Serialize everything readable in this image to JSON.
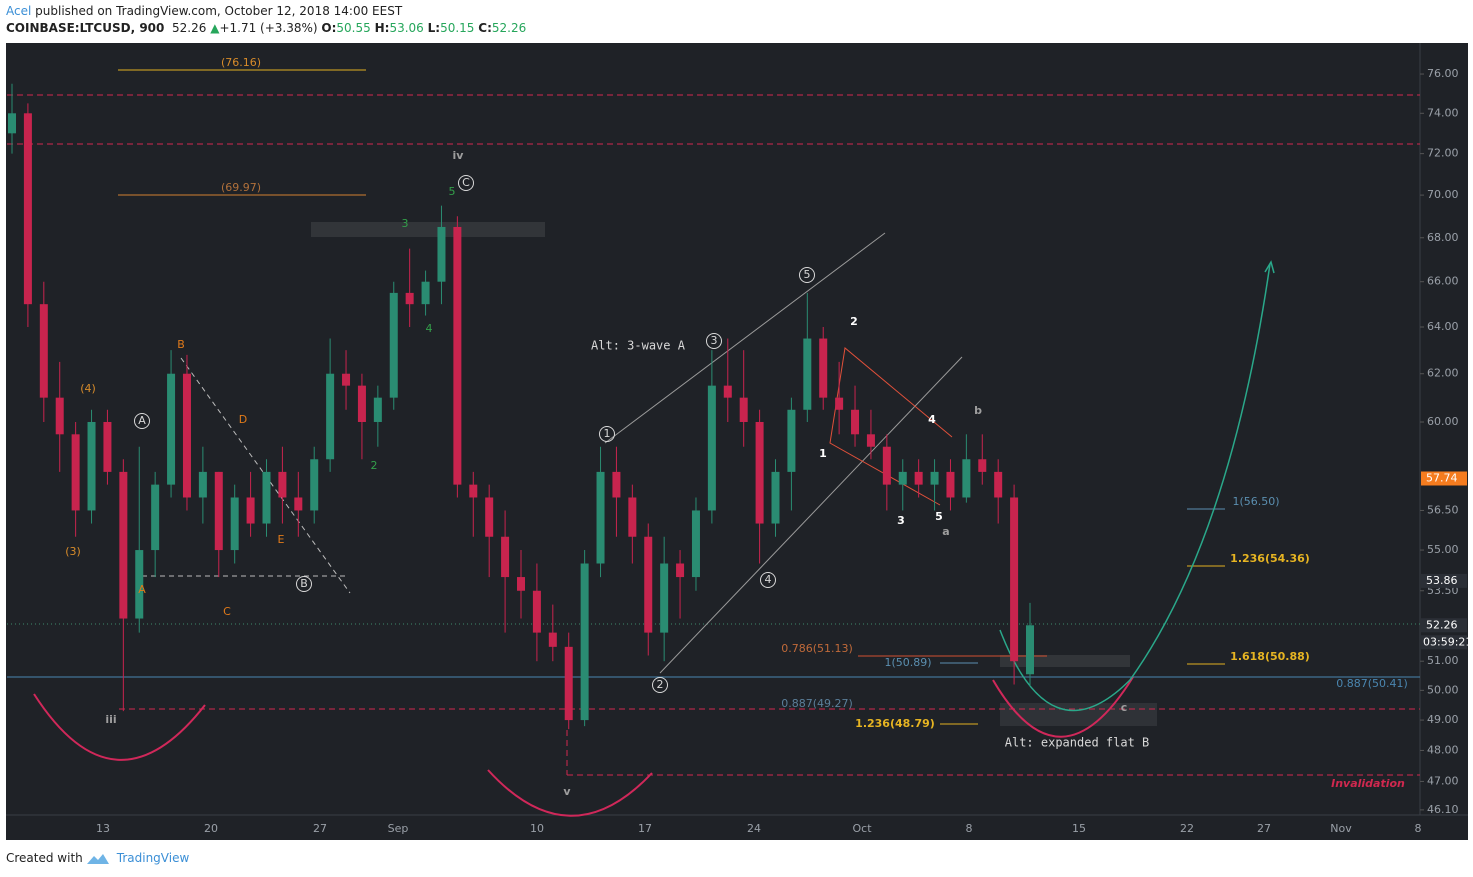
{
  "header": {
    "author": "Acel",
    "published": "published on TradingView.com, October 12, 2018 14:00 EEST",
    "symbol": "COINBASE:LTCUSD, 900",
    "last": "52.26",
    "change": "+1.71 (+3.38%)",
    "o_label": "O:",
    "o": "50.55",
    "h_label": "H:",
    "h": "53.06",
    "l_label": "L:",
    "l": "50.15",
    "c_label": "C:",
    "c": "52.26"
  },
  "footer": {
    "text": "Created with",
    "brand": "TradingView"
  },
  "chart_data": {
    "type": "candlestick",
    "log_scale": true,
    "up_color": "#2a8c72",
    "down_color": "#c8244e",
    "ylim": [
      45.94,
      77.62
    ],
    "yticks": [
      {
        "value": 46.1,
        "label": "46.10"
      },
      {
        "value": 47,
        "label": "47.00"
      },
      {
        "value": 48,
        "label": "48.00"
      },
      {
        "value": 49,
        "label": "49.00"
      },
      {
        "value": 50,
        "label": "50.00"
      },
      {
        "value": 51,
        "label": "51.00"
      },
      {
        "value": 53.5,
        "label": "53.50"
      },
      {
        "value": 55,
        "label": "55.00"
      },
      {
        "value": 56.5,
        "label": "56.50"
      },
      {
        "value": 60,
        "label": "60.00"
      },
      {
        "value": 62,
        "label": "62.00"
      },
      {
        "value": 64,
        "label": "64.00"
      },
      {
        "value": 66,
        "label": "66.00"
      },
      {
        "value": 68,
        "label": "68.00"
      },
      {
        "value": 70,
        "label": "70.00"
      },
      {
        "value": 72,
        "label": "72.00"
      },
      {
        "value": 74,
        "label": "74.00"
      },
      {
        "value": 76,
        "label": "76.00"
      }
    ],
    "xticks": [
      "13",
      "20",
      "27",
      "Sep",
      "10",
      "17",
      "24",
      "Oct",
      "8",
      "15",
      "22",
      "27",
      "Nov",
      "8"
    ],
    "price_markers": [
      {
        "value": 57.74,
        "color": "#f57c1f"
      },
      {
        "value": 53.86,
        "color": "#2b2f36"
      },
      {
        "value": 52.26,
        "color": "#2b2f36"
      }
    ],
    "countdown": "03:59:21",
    "open": [
      73,
      74,
      65,
      61,
      59.5,
      56.5,
      60,
      58,
      52.5,
      55,
      57.5,
      62,
      57,
      58,
      55,
      57,
      56,
      58,
      57,
      56.5,
      58.5,
      62,
      61.5,
      60,
      61,
      65.5,
      65,
      66,
      68.5,
      57.5,
      57,
      55.5,
      54,
      53.5,
      52,
      51.5,
      49,
      54.5,
      58,
      57,
      55.5,
      52,
      54.5,
      54,
      56.5,
      61.5,
      61,
      60,
      56,
      58,
      60.5,
      63.5,
      61,
      60.5,
      59.5,
      59,
      57.5,
      58,
      57.5,
      58,
      57,
      58.5,
      58,
      57,
      50.55
    ],
    "high": [
      75.5,
      74.5,
      66,
      62.5,
      60,
      60.5,
      60.5,
      58.5,
      59,
      58,
      63,
      62.8,
      59,
      58,
      57.5,
      58,
      58.5,
      59,
      58,
      59,
      63.5,
      63,
      62,
      61.5,
      66,
      67.5,
      66.5,
      69.5,
      69,
      58,
      57.5,
      56.5,
      55,
      54.5,
      53,
      52,
      55,
      59,
      59,
      57.5,
      56,
      55.5,
      55,
      57,
      63,
      63.5,
      63,
      60.5,
      58.5,
      61,
      65.5,
      64,
      62.5,
      61.5,
      60.5,
      59.5,
      58.5,
      58.5,
      58.5,
      58.5,
      59.5,
      59.5,
      58.5,
      57.5,
      53.06
    ],
    "low": [
      72,
      64,
      60,
      58,
      55.5,
      56,
      57.5,
      49.3,
      52,
      54,
      57,
      56.5,
      56,
      54,
      54.5,
      55.5,
      55.5,
      56,
      55.5,
      56,
      58,
      60.5,
      58.5,
      59,
      60.5,
      64,
      64.5,
      65,
      57,
      55.5,
      54,
      52,
      52.5,
      51,
      51,
      48.7,
      48.8,
      54,
      55.5,
      54.5,
      51.2,
      51,
      52.5,
      53.5,
      56,
      60,
      59,
      54.5,
      55.5,
      56.5,
      60,
      60.5,
      59.5,
      59,
      58.5,
      56.5,
      56.5,
      57,
      56.5,
      56.5,
      56.8,
      57.5,
      56,
      50.2,
      50.15
    ],
    "close": [
      74,
      65,
      61,
      59.5,
      56.5,
      60,
      58,
      52.5,
      55,
      57.5,
      62,
      57,
      58,
      55,
      57,
      56,
      58,
      57,
      56.5,
      58.5,
      62,
      61.5,
      60,
      61,
      65.5,
      65,
      66,
      68.5,
      57.5,
      57,
      55.5,
      54,
      53.5,
      52,
      51.5,
      49,
      54.5,
      58,
      57,
      55.5,
      52,
      54.5,
      54,
      56.5,
      61.5,
      61,
      60,
      56,
      58,
      60.5,
      63.5,
      61,
      60.5,
      59.5,
      59,
      57.5,
      58,
      57.5,
      58,
      57,
      58.5,
      58,
      57,
      51,
      52.26
    ],
    "annotations": [
      {
        "text": "(76.16)",
        "color": "#d88c2a"
      },
      {
        "text": "(69.97)",
        "color": "#b0703a"
      },
      {
        "text": "iv",
        "color": "#9e9e9e"
      },
      {
        "text": "C",
        "color": "#d8d8d8"
      },
      {
        "text": "5",
        "color": "#33a04a"
      },
      {
        "text": "3",
        "color": "#33a04a"
      },
      {
        "text": "4",
        "color": "#33a04a"
      },
      {
        "text": "2",
        "color": "#33a04a"
      },
      {
        "text": "(4)",
        "color": "#d88c2a"
      },
      {
        "text": "(3)",
        "color": "#d88c2a"
      },
      {
        "text": "A",
        "color": "#d8d8d8"
      },
      {
        "text": "B",
        "color": "#e07a1a"
      },
      {
        "text": "D",
        "color": "#e07a1a"
      },
      {
        "text": "E",
        "color": "#e07a1a"
      },
      {
        "text": "A",
        "color": "#e07a1a"
      },
      {
        "text": "C",
        "color": "#e07a1a"
      },
      {
        "text": "B",
        "color": "#d8d8d8"
      },
      {
        "text": "iii",
        "color": "#9e9e9e"
      },
      {
        "text": "v",
        "color": "#9e9e9e"
      },
      {
        "text": "Alt: 3-wave A",
        "color": "#d8d8d8"
      },
      {
        "text": "3",
        "color": "#d8d8d8"
      },
      {
        "text": "1",
        "color": "#d8d8d8"
      },
      {
        "text": "5",
        "color": "#d8d8d8"
      },
      {
        "text": "4",
        "color": "#d8d8d8"
      },
      {
        "text": "2",
        "color": "#d8d8d8"
      },
      {
        "text": "2",
        "color": "#ffffff"
      },
      {
        "text": "1",
        "color": "#ffffff"
      },
      {
        "text": "4",
        "color": "#ffffff"
      },
      {
        "text": "3",
        "color": "#ffffff"
      },
      {
        "text": "5",
        "color": "#ffffff"
      },
      {
        "text": "a",
        "color": "#9e9e9e"
      },
      {
        "text": "b",
        "color": "#9e9e9e"
      },
      {
        "text": "c",
        "color": "#9e9e9e"
      },
      {
        "text": "0.786(51.13)",
        "color": "#c06a3a"
      },
      {
        "text": "1(50.89)",
        "color": "#5b8fb0"
      },
      {
        "text": "0.887(49.27)",
        "color": "#5b7f9a"
      },
      {
        "text": "1.236(48.79)",
        "color": "#e6b422"
      },
      {
        "text": "Alt: expanded flat B",
        "color": "#d8d8d8"
      },
      {
        "text": "1(56.50)",
        "color": "#5b8fb0"
      },
      {
        "text": "1.236(54.36)",
        "color": "#e6b422"
      },
      {
        "text": "1.618(50.88)",
        "color": "#e6b422"
      },
      {
        "text": "0.887(50.41)",
        "color": "#4a86b0"
      },
      {
        "text": "Invalidation",
        "color": "#d0284f"
      }
    ]
  }
}
